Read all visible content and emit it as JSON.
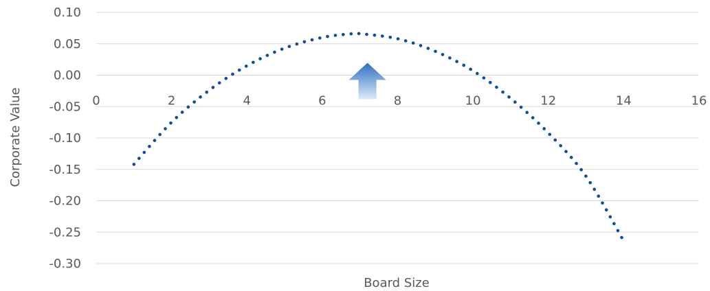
{
  "chart_data": {
    "type": "line",
    "xlabel": "Board Size",
    "ylabel": "Corporate Value",
    "xlim": [
      0,
      16
    ],
    "ylim": [
      -0.3,
      0.1
    ],
    "x_ticks": [
      0,
      2,
      4,
      6,
      8,
      10,
      12,
      14,
      16
    ],
    "x_tick_labels": [
      "0",
      "2",
      "4",
      "6",
      "8",
      "10",
      "12",
      "14",
      "16"
    ],
    "y_ticks": [
      0.1,
      0.05,
      0.0,
      -0.05,
      -0.1,
      -0.15,
      -0.2,
      -0.25,
      -0.3
    ],
    "y_tick_labels": [
      "0.10",
      "0.05",
      "0.00",
      "-0.05",
      "-0.10",
      "-0.15",
      "-0.20",
      "-0.25",
      "-0.30"
    ],
    "grid": true,
    "legend": "none",
    "line_style": "dotted",
    "series": [
      {
        "x": [
          1,
          2,
          3,
          4,
          5,
          6,
          6.8,
          7,
          8,
          9,
          10,
          11,
          12,
          13,
          14
        ],
        "y": [
          -0.142,
          -0.075,
          -0.024,
          0.015,
          0.043,
          0.06,
          0.066,
          0.066,
          0.058,
          0.038,
          0.007,
          -0.037,
          -0.092,
          -0.161,
          -0.264
        ]
      }
    ],
    "annotation": {
      "type": "arrow-up",
      "x": 7.2,
      "y": 0.0
    },
    "colors": {
      "line": "#0B4F9C",
      "grid": "#D9D9D9",
      "text": "#595959",
      "arrow_top": "#2E6FC1",
      "arrow_bottom": "#DCE9F8"
    }
  }
}
